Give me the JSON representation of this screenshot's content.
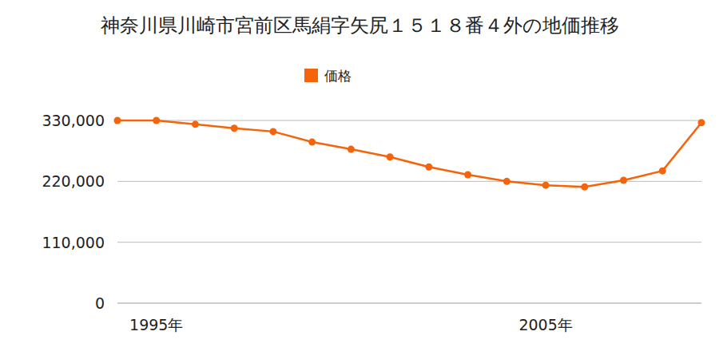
{
  "chart_data": {
    "type": "line",
    "title": "神奈川県川崎市宮前区馬絹字矢尻１５１８番４外の地価推移",
    "categories": [
      null,
      "1995年",
      null,
      null,
      null,
      null,
      null,
      null,
      null,
      null,
      null,
      "2005年",
      null,
      null,
      null,
      null
    ],
    "series": [
      {
        "name": "価格",
        "color": "#f5640a",
        "marker": "circle",
        "values": [
          330000,
          330000,
          323000,
          316000,
          310000,
          291000,
          278000,
          264000,
          246000,
          232000,
          220000,
          213000,
          210000,
          222000,
          239000,
          326000
        ]
      }
    ],
    "ylim": [
      0,
      330000
    ],
    "yticks": [
      0,
      {
        "value": 110000,
        "label": "110,000"
      },
      {
        "value": 220000,
        "label": "220,000"
      },
      {
        "value": 330000,
        "label": "330,000"
      }
    ],
    "grid": true,
    "legend": "top"
  }
}
